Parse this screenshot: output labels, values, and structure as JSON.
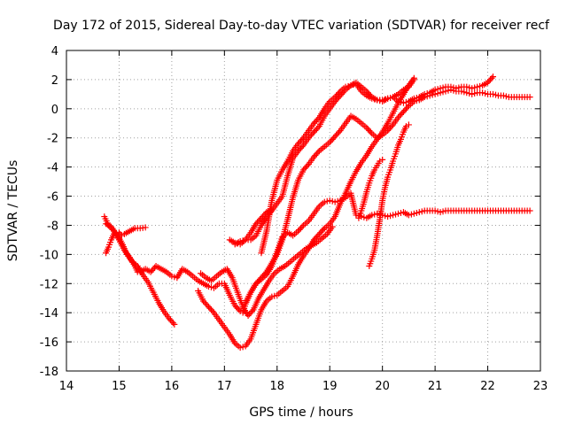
{
  "chart_data": {
    "type": "scatter",
    "title": "Day 172 of 2015, Sidereal Day-to-day VTEC variation (SDTVAR) for receiver recf",
    "xlabel": "GPS time / hours",
    "ylabel": "SDTVAR / TECUs",
    "xlim": [
      14,
      23
    ],
    "ylim": [
      -18,
      4
    ],
    "xticks": [
      14,
      15,
      16,
      17,
      18,
      19,
      20,
      21,
      22,
      23
    ],
    "yticks": [
      -18,
      -16,
      -14,
      -12,
      -10,
      -8,
      -6,
      -4,
      -2,
      0,
      2,
      4
    ],
    "grid": true,
    "marker": "plus",
    "color": "#ff0000",
    "series": [
      {
        "x": [
          14.75,
          14.8,
          14.85,
          14.9,
          15.0,
          15.05,
          15.1,
          15.2,
          15.3,
          15.4,
          15.5
        ],
        "y": [
          -9.9,
          -9.5,
          -9.0,
          -8.6,
          -8.5,
          -8.7,
          -8.6,
          -8.4,
          -8.2,
          -8.2,
          -8.15
        ]
      },
      {
        "x": [
          14.72,
          14.8,
          14.9,
          15.0,
          15.1,
          15.2,
          15.3,
          15.35,
          15.4,
          15.5,
          15.6,
          15.7,
          15.8,
          15.9,
          16.0,
          16.1,
          16.2,
          16.3,
          16.4,
          16.5,
          16.6,
          16.7,
          16.8,
          16.9,
          17.0,
          17.1,
          17.2,
          17.3,
          17.35,
          17.4,
          17.5,
          17.6,
          17.7,
          17.8,
          17.9,
          18.0,
          18.1,
          18.2,
          18.3,
          18.4,
          18.5,
          18.6,
          18.7,
          18.8,
          18.9,
          19.0,
          19.1,
          19.2,
          19.3,
          19.4,
          19.5,
          19.6,
          19.7,
          19.8,
          19.9,
          20.0,
          20.1,
          20.2,
          20.3,
          20.4,
          20.5,
          20.6,
          20.7,
          20.8,
          20.9,
          21.0,
          21.1,
          21.2,
          21.3,
          21.4,
          21.5,
          21.6,
          21.7,
          21.8,
          21.9,
          22.0,
          22.1,
          22.2,
          22.3,
          22.4,
          22.5,
          22.6,
          22.7,
          22.8
        ],
        "y": [
          -7.4,
          -8.0,
          -8.4,
          -9.0,
          -9.7,
          -10.2,
          -10.8,
          -11.2,
          -11.2,
          -11.0,
          -11.2,
          -10.8,
          -11.0,
          -11.2,
          -11.5,
          -11.6,
          -11.0,
          -11.2,
          -11.5,
          -11.8,
          -12.0,
          -12.2,
          -12.3,
          -12.0,
          -12.0,
          -12.8,
          -13.5,
          -13.9,
          -14.0,
          -13.4,
          -12.6,
          -12.0,
          -11.7,
          -11.4,
          -10.8,
          -9.8,
          -8.8,
          -8.5,
          -8.7,
          -8.4,
          -8.0,
          -7.7,
          -7.2,
          -6.7,
          -6.4,
          -6.3,
          -6.4,
          -6.3,
          -6.1,
          -5.8,
          -7.3,
          -7.4,
          -7.5,
          -7.3,
          -7.2,
          -7.3,
          -7.4,
          -7.3,
          -7.2,
          -7.1,
          -7.3,
          -7.2,
          -7.1,
          -7.0,
          -7.0,
          -7.0,
          -7.1,
          -7.0,
          -7.0,
          -7.0,
          -7.0,
          -7.0,
          -7.0,
          -7.0,
          -7.0,
          -7.0,
          -7.0,
          -7.0,
          -7.0,
          -7.0,
          -7.0,
          -7.0,
          -7.0,
          -7.0
        ]
      },
      {
        "x": [
          14.75,
          14.85,
          14.95,
          15.05,
          15.15,
          15.25,
          15.35,
          15.45,
          15.55,
          15.65,
          15.75,
          15.85,
          15.95,
          16.05
        ],
        "y": [
          -7.9,
          -8.1,
          -8.6,
          -9.2,
          -10.0,
          -10.5,
          -10.8,
          -11.4,
          -11.9,
          -12.6,
          -13.3,
          -13.9,
          -14.4,
          -14.8
        ]
      },
      {
        "x": [
          16.5,
          16.6,
          16.7,
          16.8,
          16.9,
          17.0,
          17.1,
          17.2,
          17.3,
          17.4,
          17.5,
          17.6,
          17.7,
          17.8,
          17.9,
          18.0,
          18.1,
          18.2,
          18.3,
          18.4,
          18.5,
          18.6,
          18.7,
          18.8,
          18.9,
          19.0,
          19.1,
          19.2,
          19.3,
          19.4,
          19.5,
          19.6,
          19.7,
          19.8,
          19.9,
          20.0,
          20.1,
          20.2,
          20.3,
          20.4,
          20.5,
          20.6
        ],
        "y": [
          -12.5,
          -13.2,
          -13.6,
          -14.0,
          -14.5,
          -15.0,
          -15.5,
          -16.1,
          -16.4,
          -16.3,
          -15.8,
          -14.8,
          -13.8,
          -13.2,
          -12.9,
          -12.8,
          -12.5,
          -12.2,
          -11.5,
          -10.7,
          -10.1,
          -9.6,
          -9.0,
          -8.6,
          -8.2,
          -7.9,
          -7.4,
          -6.5,
          -5.8,
          -5.0,
          -4.3,
          -3.7,
          -3.2,
          -2.6,
          -2.1,
          -1.6,
          -1.0,
          -0.3,
          0.4,
          1.0,
          1.6,
          2.1
        ]
      },
      {
        "x": [
          16.55,
          16.65,
          16.75,
          16.85,
          16.95,
          17.05,
          17.15,
          17.25,
          17.35,
          17.45,
          17.55,
          17.65,
          17.75,
          17.85,
          17.95,
          18.05,
          18.15,
          18.25,
          18.35,
          18.45,
          18.55,
          18.65,
          18.75,
          18.85,
          18.95,
          19.05
        ],
        "y": [
          -11.3,
          -11.6,
          -11.8,
          -11.5,
          -11.2,
          -11.0,
          -11.6,
          -12.6,
          -13.6,
          -14.2,
          -13.8,
          -13.0,
          -12.4,
          -11.8,
          -11.3,
          -11.0,
          -10.8,
          -10.5,
          -10.2,
          -9.9,
          -9.6,
          -9.4,
          -9.2,
          -8.9,
          -8.6,
          -8.1
        ]
      },
      {
        "x": [
          17.1,
          17.2,
          17.3,
          17.4,
          17.5,
          17.6,
          17.7,
          17.8,
          17.9
        ],
        "y": [
          -9.0,
          -9.2,
          -9.3,
          -9.0,
          -8.5,
          -7.9,
          -7.5,
          -7.1,
          -6.9
        ]
      },
      {
        "x": [
          17.2,
          17.3,
          17.4,
          17.5,
          17.6,
          17.7,
          17.8,
          17.9,
          18.0,
          18.1,
          18.2,
          18.3,
          18.4,
          18.5,
          18.6,
          18.7,
          18.8,
          18.9,
          19.0,
          19.1,
          19.2,
          19.3,
          19.4,
          19.5,
          19.6,
          19.7,
          19.8,
          19.9,
          20.0,
          20.1,
          20.2,
          20.3,
          20.4,
          20.5,
          20.6,
          20.7,
          20.8,
          20.9,
          21.0,
          21.1,
          21.2,
          21.3,
          21.4,
          21.5,
          21.6,
          21.7,
          21.8,
          21.9,
          22.0,
          22.1
        ],
        "y": [
          -9.3,
          -9.1,
          -9.0,
          -9.0,
          -8.7,
          -8.0,
          -7.4,
          -7.0,
          -6.5,
          -6.0,
          -4.6,
          -3.4,
          -2.9,
          -2.5,
          -2.0,
          -1.6,
          -1.2,
          -0.5,
          0.0,
          0.5,
          0.9,
          1.3,
          1.6,
          1.8,
          1.5,
          1.2,
          0.8,
          0.6,
          0.5,
          0.7,
          0.8,
          0.5,
          0.4,
          0.5,
          0.7,
          0.8,
          1.0,
          1.1,
          1.3,
          1.4,
          1.5,
          1.5,
          1.4,
          1.5,
          1.5,
          1.4,
          1.5,
          1.6,
          1.8,
          2.2
        ]
      },
      {
        "x": [
          17.4,
          17.5,
          17.6,
          17.7,
          17.8,
          17.9,
          18.0,
          18.1,
          18.2,
          18.3,
          18.4,
          18.5,
          18.6,
          18.7,
          18.8,
          18.9,
          19.0,
          19.1,
          19.2,
          19.3,
          19.4,
          19.5,
          19.6,
          19.7,
          19.8,
          19.9,
          20.0,
          20.1,
          20.2,
          20.3,
          20.4,
          20.5,
          20.6,
          20.7,
          20.8,
          20.9,
          21.0,
          21.1,
          21.2,
          21.3,
          21.4,
          21.5,
          21.6,
          21.7,
          21.8,
          21.9,
          22.0,
          22.1,
          22.2,
          22.3,
          22.4,
          22.5,
          22.6,
          22.7,
          22.8
        ],
        "y": [
          -13.3,
          -12.6,
          -12.0,
          -11.6,
          -11.2,
          -10.6,
          -10.0,
          -9.0,
          -7.6,
          -6.1,
          -4.9,
          -4.2,
          -3.8,
          -3.3,
          -2.9,
          -2.6,
          -2.3,
          -1.9,
          -1.5,
          -1.0,
          -0.5,
          -0.7,
          -1.0,
          -1.3,
          -1.7,
          -2.0,
          -1.8,
          -1.5,
          -1.1,
          -0.6,
          -0.2,
          0.2,
          0.5,
          0.6,
          0.8,
          0.9,
          1.0,
          1.1,
          1.2,
          1.3,
          1.2,
          1.2,
          1.1,
          1.0,
          1.1,
          1.1,
          1.0,
          1.0,
          0.9,
          0.9,
          0.8,
          0.8,
          0.8,
          0.8,
          0.8
        ]
      },
      {
        "x": [
          17.7,
          17.8,
          17.9,
          18.0,
          18.1,
          18.2,
          18.3,
          18.4,
          18.5,
          18.6,
          18.7,
          18.8,
          18.9,
          19.0,
          19.1,
          19.2,
          19.3,
          19.4,
          19.5,
          19.6,
          19.7,
          19.8,
          19.9,
          20.0,
          20.1,
          20.2,
          20.3,
          20.4,
          20.5,
          20.6
        ],
        "y": [
          -9.9,
          -8.4,
          -6.3,
          -4.9,
          -4.2,
          -3.6,
          -2.9,
          -2.4,
          -2.0,
          -1.5,
          -1.0,
          -0.6,
          0.0,
          0.5,
          0.8,
          1.2,
          1.5,
          1.6,
          1.7,
          1.2,
          0.9,
          0.7,
          0.6,
          0.6,
          0.7,
          0.8,
          1.0,
          1.3,
          1.5,
          2.0
        ]
      },
      {
        "x": [
          19.75,
          19.8,
          19.85,
          19.9,
          19.95,
          20.0,
          20.05,
          20.1,
          20.15,
          20.2,
          20.25,
          20.3,
          20.35,
          20.4,
          20.45,
          20.5
        ],
        "y": [
          -10.8,
          -10.3,
          -9.7,
          -8.7,
          -7.6,
          -6.3,
          -5.4,
          -4.7,
          -4.2,
          -3.6,
          -3.1,
          -2.5,
          -2.1,
          -1.6,
          -1.2,
          -1.1
        ]
      },
      {
        "x": [
          19.55,
          19.6,
          19.65,
          19.7,
          19.75,
          19.8,
          19.85,
          19.9,
          19.95,
          20.0
        ],
        "y": [
          -7.5,
          -7.0,
          -6.4,
          -5.7,
          -5.1,
          -4.6,
          -4.2,
          -3.9,
          -3.6,
          -3.5
        ]
      }
    ]
  }
}
